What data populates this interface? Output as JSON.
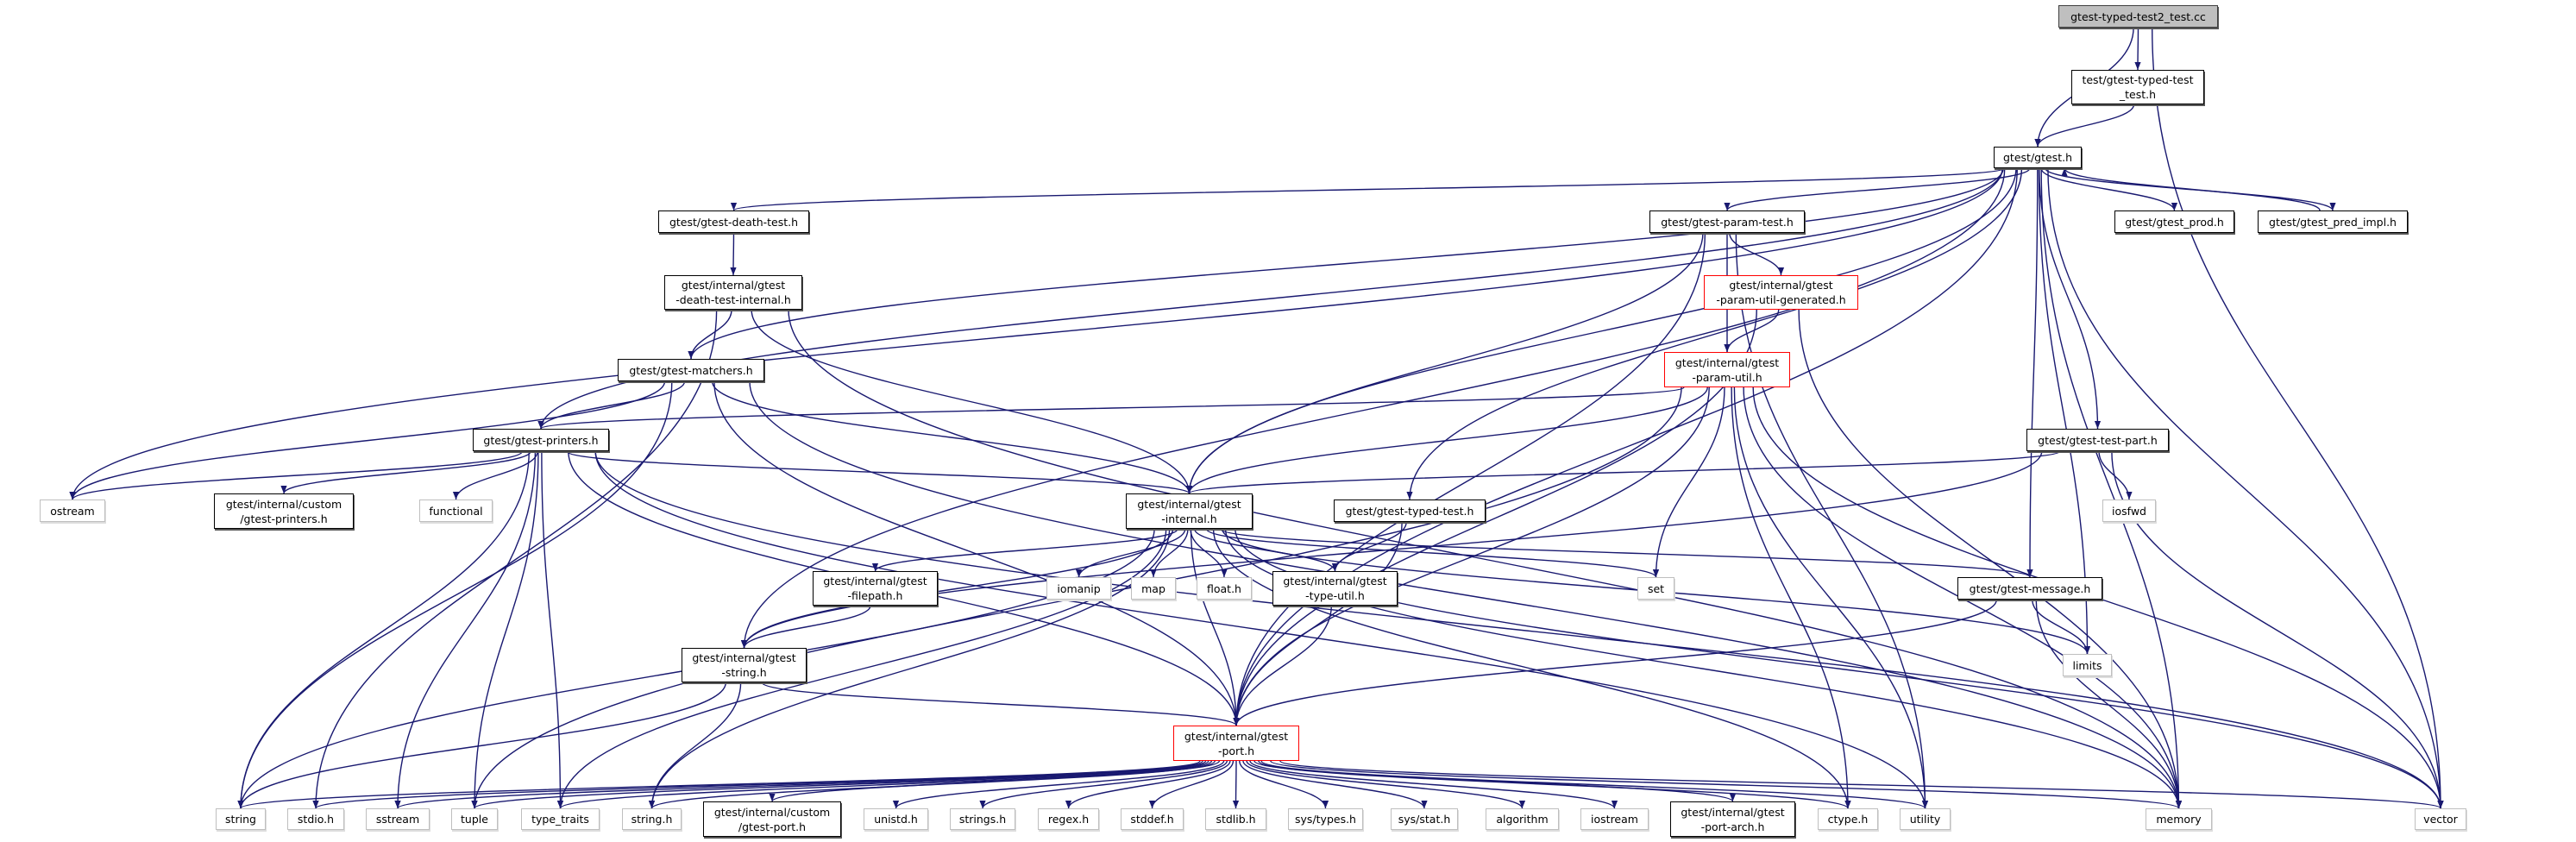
{
  "graph": {
    "edge_color": "#191970",
    "node_kinds": {
      "root_fill": "#bfbfbf",
      "documented_border": "#000000",
      "system_border": "#bfbfbf",
      "truncated_border": "#ff0000"
    },
    "nodes": {
      "root": {
        "label": "gtest-typed-test2_test.cc",
        "kind": "root"
      },
      "typed_test_test_h": {
        "label": "test/gtest-typed-test\n_test.h",
        "kind": "doc"
      },
      "gtest_h": {
        "label": "gtest/gtest.h",
        "kind": "doc"
      },
      "param_test": {
        "label": "gtest/gtest-param-test.h",
        "kind": "doc"
      },
      "prod": {
        "label": "gtest/gtest_prod.h",
        "kind": "doc"
      },
      "pred_impl": {
        "label": "gtest/gtest_pred_impl.h",
        "kind": "doc"
      },
      "death_test": {
        "label": "gtest/gtest-death-test.h",
        "kind": "doc"
      },
      "param_gen": {
        "label": "gtest/internal/gtest\n-param-util-generated.h",
        "kind": "trunc"
      },
      "death_internal": {
        "label": "gtest/internal/gtest\n-death-test-internal.h",
        "kind": "doc"
      },
      "param_util": {
        "label": "gtest/internal/gtest\n-param-util.h",
        "kind": "trunc"
      },
      "matchers": {
        "label": "gtest/gtest-matchers.h",
        "kind": "doc"
      },
      "printers": {
        "label": "gtest/gtest-printers.h",
        "kind": "doc"
      },
      "test_part": {
        "label": "gtest/gtest-test-part.h",
        "kind": "doc"
      },
      "ostream": {
        "label": "ostream",
        "kind": "sys"
      },
      "custom_printers": {
        "label": "gtest/internal/custom\n/gtest-printers.h",
        "kind": "doc"
      },
      "functional": {
        "label": "functional",
        "kind": "sys"
      },
      "internal": {
        "label": "gtest/internal/gtest\n-internal.h",
        "kind": "doc"
      },
      "typed_test": {
        "label": "gtest/gtest-typed-test.h",
        "kind": "doc"
      },
      "iosfwd": {
        "label": "iosfwd",
        "kind": "sys"
      },
      "filepath": {
        "label": "gtest/internal/gtest\n-filepath.h",
        "kind": "doc"
      },
      "iomanip": {
        "label": "iomanip",
        "kind": "sys"
      },
      "map": {
        "label": "map",
        "kind": "sys"
      },
      "float": {
        "label": "float.h",
        "kind": "sys"
      },
      "type_util": {
        "label": "gtest/internal/gtest\n-type-util.h",
        "kind": "doc"
      },
      "set": {
        "label": "set",
        "kind": "sys"
      },
      "message": {
        "label": "gtest/gtest-message.h",
        "kind": "doc"
      },
      "gstring": {
        "label": "gtest/internal/gtest\n-string.h",
        "kind": "doc"
      },
      "limits": {
        "label": "limits",
        "kind": "sys"
      },
      "port": {
        "label": "gtest/internal/gtest\n-port.h",
        "kind": "trunc"
      },
      "string": {
        "label": "string",
        "kind": "sys"
      },
      "stdio": {
        "label": "stdio.h",
        "kind": "sys"
      },
      "sstream": {
        "label": "sstream",
        "kind": "sys"
      },
      "tuple": {
        "label": "tuple",
        "kind": "sys"
      },
      "type_traits": {
        "label": "type_traits",
        "kind": "sys"
      },
      "string_h": {
        "label": "string.h",
        "kind": "sys"
      },
      "custom_port": {
        "label": "gtest/internal/custom\n/gtest-port.h",
        "kind": "doc"
      },
      "unistd": {
        "label": "unistd.h",
        "kind": "sys"
      },
      "strings": {
        "label": "strings.h",
        "kind": "sys"
      },
      "regex": {
        "label": "regex.h",
        "kind": "sys"
      },
      "stddef": {
        "label": "stddef.h",
        "kind": "sys"
      },
      "stdlib": {
        "label": "stdlib.h",
        "kind": "sys"
      },
      "sys_types": {
        "label": "sys/types.h",
        "kind": "sys"
      },
      "sys_stat": {
        "label": "sys/stat.h",
        "kind": "sys"
      },
      "algorithm": {
        "label": "algorithm",
        "kind": "sys"
      },
      "iostream": {
        "label": "iostream",
        "kind": "sys"
      },
      "port_arch": {
        "label": "gtest/internal/gtest\n-port-arch.h",
        "kind": "doc"
      },
      "ctype": {
        "label": "ctype.h",
        "kind": "sys"
      },
      "utility": {
        "label": "utility",
        "kind": "sys"
      },
      "memory": {
        "label": "memory",
        "kind": "sys"
      },
      "vector": {
        "label": "vector",
        "kind": "sys"
      }
    },
    "edges": [
      [
        "root",
        "gtest_h"
      ],
      [
        "root",
        "typed_test_test_h"
      ],
      [
        "root",
        "vector"
      ],
      [
        "typed_test_test_h",
        "gtest_h"
      ],
      [
        "gtest_h",
        "ostream"
      ],
      [
        "gtest_h",
        "printers"
      ],
      [
        "gtest_h",
        "matchers"
      ],
      [
        "gtest_h",
        "death_test"
      ],
      [
        "gtest_h",
        "gstring"
      ],
      [
        "gtest_h",
        "internal"
      ],
      [
        "gtest_h",
        "param_test"
      ],
      [
        "gtest_h",
        "typed_test"
      ],
      [
        "gtest_h",
        "port"
      ],
      [
        "gtest_h",
        "message"
      ],
      [
        "gtest_h",
        "test_part"
      ],
      [
        "gtest_h",
        "prod"
      ],
      [
        "gtest_h",
        "pred_impl"
      ],
      [
        "gtest_h",
        "limits"
      ],
      [
        "gtest_h",
        "memory"
      ],
      [
        "gtest_h",
        "vector"
      ],
      [
        "pred_impl",
        "gtest_h"
      ],
      [
        "death_test",
        "death_internal"
      ],
      [
        "death_internal",
        "matchers"
      ],
      [
        "death_internal",
        "internal"
      ],
      [
        "death_internal",
        "stdio"
      ],
      [
        "death_internal",
        "memory"
      ],
      [
        "matchers",
        "printers"
      ],
      [
        "matchers",
        "internal"
      ],
      [
        "matchers",
        "port"
      ],
      [
        "matchers",
        "ostream"
      ],
      [
        "matchers",
        "string"
      ],
      [
        "matchers",
        "memory"
      ],
      [
        "printers",
        "ostream"
      ],
      [
        "printers",
        "custom_printers"
      ],
      [
        "printers",
        "functional"
      ],
      [
        "printers",
        "string"
      ],
      [
        "printers",
        "sstream"
      ],
      [
        "printers",
        "tuple"
      ],
      [
        "printers",
        "type_traits"
      ],
      [
        "printers",
        "internal"
      ],
      [
        "printers",
        "port"
      ],
      [
        "printers",
        "utility"
      ],
      [
        "printers",
        "vector"
      ],
      [
        "param_test",
        "internal"
      ],
      [
        "param_test",
        "param_gen"
      ],
      [
        "param_test",
        "param_util"
      ],
      [
        "param_test",
        "port"
      ],
      [
        "param_test",
        "utility"
      ],
      [
        "param_gen",
        "param_util"
      ],
      [
        "param_gen",
        "port"
      ],
      [
        "param_gen",
        "memory"
      ],
      [
        "param_util",
        "printers"
      ],
      [
        "param_util",
        "internal"
      ],
      [
        "param_util",
        "port"
      ],
      [
        "param_util",
        "ctype"
      ],
      [
        "param_util",
        "set"
      ],
      [
        "param_util",
        "utility"
      ],
      [
        "param_util",
        "vector"
      ],
      [
        "param_util",
        "memory"
      ],
      [
        "param_util",
        "tuple"
      ],
      [
        "test_part",
        "internal"
      ],
      [
        "test_part",
        "gstring"
      ],
      [
        "test_part",
        "iosfwd"
      ],
      [
        "test_part",
        "vector"
      ],
      [
        "typed_test",
        "type_util"
      ],
      [
        "typed_test",
        "port"
      ],
      [
        "internal",
        "port"
      ],
      [
        "internal",
        "filepath"
      ],
      [
        "internal",
        "gstring"
      ],
      [
        "internal",
        "type_util"
      ],
      [
        "internal",
        "message"
      ],
      [
        "internal",
        "iomanip"
      ],
      [
        "internal",
        "map"
      ],
      [
        "internal",
        "float"
      ],
      [
        "internal",
        "set"
      ],
      [
        "internal",
        "limits"
      ],
      [
        "internal",
        "string"
      ],
      [
        "internal",
        "string_h"
      ],
      [
        "internal",
        "type_traits"
      ],
      [
        "internal",
        "ctype"
      ],
      [
        "internal",
        "vector"
      ],
      [
        "internal",
        "memory"
      ],
      [
        "filepath",
        "gstring"
      ],
      [
        "gstring",
        "string_h"
      ],
      [
        "gstring",
        "string"
      ],
      [
        "gstring",
        "port"
      ],
      [
        "type_util",
        "port"
      ],
      [
        "message",
        "limits"
      ],
      [
        "message",
        "memory"
      ],
      [
        "message",
        "port"
      ],
      [
        "port",
        "string"
      ],
      [
        "port",
        "stdio"
      ],
      [
        "port",
        "sstream"
      ],
      [
        "port",
        "tuple"
      ],
      [
        "port",
        "type_traits"
      ],
      [
        "port",
        "string_h"
      ],
      [
        "port",
        "custom_port"
      ],
      [
        "port",
        "unistd"
      ],
      [
        "port",
        "strings"
      ],
      [
        "port",
        "regex"
      ],
      [
        "port",
        "stddef"
      ],
      [
        "port",
        "stdlib"
      ],
      [
        "port",
        "sys_types"
      ],
      [
        "port",
        "sys_stat"
      ],
      [
        "port",
        "algorithm"
      ],
      [
        "port",
        "iostream"
      ],
      [
        "port",
        "port_arch"
      ],
      [
        "port",
        "ctype"
      ],
      [
        "port",
        "utility"
      ],
      [
        "port",
        "memory"
      ],
      [
        "port",
        "vector"
      ]
    ]
  }
}
